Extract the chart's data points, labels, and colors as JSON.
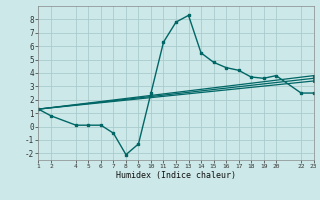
{
  "xlabel": "Humidex (Indice chaleur)",
  "bg_color": "#cce8e8",
  "grid_color": "#aacccc",
  "line_color": "#006666",
  "xlim": [
    1,
    23
  ],
  "ylim": [
    -2.5,
    9
  ],
  "xticks": [
    1,
    2,
    4,
    5,
    6,
    7,
    8,
    9,
    10,
    11,
    12,
    13,
    14,
    15,
    16,
    17,
    18,
    19,
    20,
    22,
    23
  ],
  "yticks": [
    -2,
    -1,
    0,
    1,
    2,
    3,
    4,
    5,
    6,
    7,
    8
  ],
  "series": [
    {
      "x": [
        1,
        2,
        4,
        5,
        6,
        7,
        8,
        9,
        10,
        11,
        12,
        13,
        14,
        15,
        16,
        17,
        18,
        19,
        20,
        22,
        23
      ],
      "y": [
        1.3,
        0.8,
        0.1,
        0.1,
        0.1,
        -0.5,
        -2.1,
        -1.3,
        2.5,
        6.3,
        7.8,
        8.3,
        5.5,
        4.8,
        4.4,
        4.2,
        3.7,
        3.6,
        3.8,
        2.5,
        2.5
      ]
    },
    {
      "x": [
        1,
        23
      ],
      "y": [
        1.3,
        3.8
      ]
    },
    {
      "x": [
        1,
        23
      ],
      "y": [
        1.3,
        3.6
      ]
    },
    {
      "x": [
        1,
        23
      ],
      "y": [
        1.3,
        3.4
      ]
    }
  ]
}
